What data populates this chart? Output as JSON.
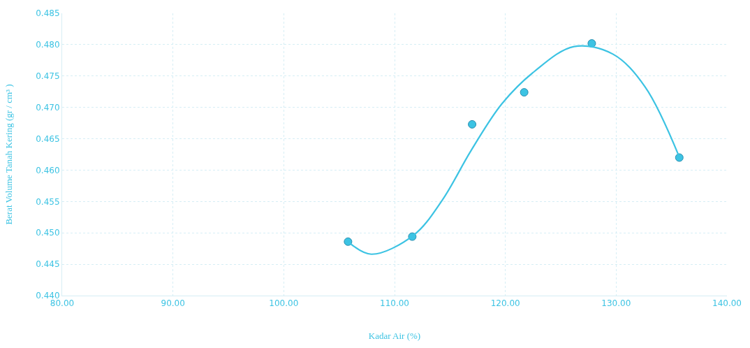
{
  "chart_data": {
    "type": "scatter",
    "xlabel": "Kadar Air (%)",
    "ylabel": "Berat Volume Tanah Kering (gr / cm³ )",
    "xlim": [
      80,
      140
    ],
    "xticks": [
      {
        "value": 80,
        "label": "80.00"
      },
      {
        "value": 90,
        "label": "90.00"
      },
      {
        "value": 100,
        "label": "100.00"
      },
      {
        "value": 110,
        "label": "110.00"
      },
      {
        "value": 120,
        "label": "120.00"
      },
      {
        "value": 130,
        "label": "130.00"
      },
      {
        "value": 140,
        "label": "140.00"
      }
    ],
    "ylim": [
      0.44,
      0.485
    ],
    "yticks": [
      {
        "value": 0.44,
        "label": "0.440"
      },
      {
        "value": 0.445,
        "label": "0.445"
      },
      {
        "value": 0.45,
        "label": "0.450"
      },
      {
        "value": 0.455,
        "label": "0.455"
      },
      {
        "value": 0.46,
        "label": "0.460"
      },
      {
        "value": 0.465,
        "label": "0.465"
      },
      {
        "value": 0.47,
        "label": "0.470"
      },
      {
        "value": 0.475,
        "label": "0.475"
      },
      {
        "value": 0.48,
        "label": "0.480"
      },
      {
        "value": 0.485,
        "label": "0.485"
      }
    ],
    "grid": true,
    "marker": "circle",
    "series": [
      {
        "color": "#3cc3e3",
        "x": [
          105.8,
          111.6,
          117.0,
          121.7,
          127.8,
          135.7
        ],
        "values": [
          0.4486,
          0.4494,
          0.4673,
          0.4724,
          0.4802,
          0.462
        ]
      },
      {
        "type": "line",
        "color": "#3cc3e3",
        "marker": "none",
        "line_style": "solid",
        "x": [
          105.8,
          107.9,
          111.7,
          114.3,
          116.9,
          119.7,
          122.6,
          126.2,
          129.7,
          132.6,
          135.7
        ],
        "values": [
          0.4486,
          0.4466,
          0.4496,
          0.4552,
          0.4631,
          0.4706,
          0.4757,
          0.4797,
          0.4785,
          0.4733,
          0.4621
        ]
      }
    ]
  }
}
